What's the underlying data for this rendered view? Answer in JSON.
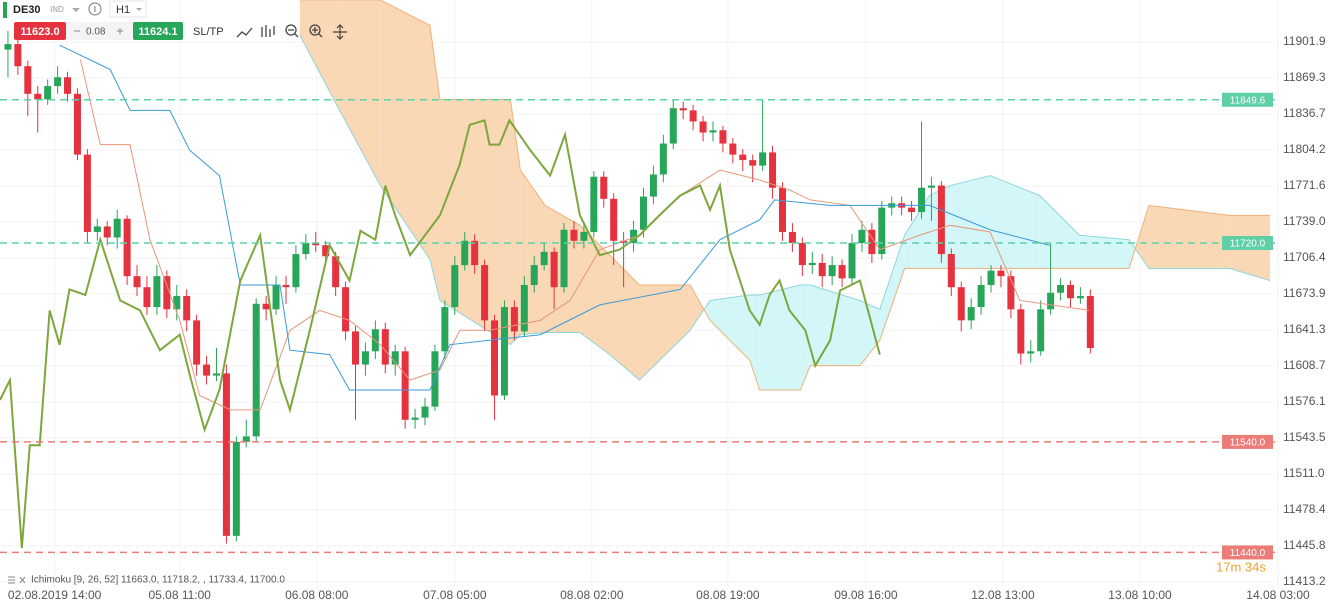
{
  "toolbar": {
    "symbol": "DE30",
    "badge": "IND",
    "timeframe": "H1",
    "sell": "11623.0",
    "spread": "0.08",
    "buy": "11624.1",
    "sltp": "SL/TP"
  },
  "chart_data": {
    "type": "candlestick",
    "ylim": [
      11388.8,
      11939.9
    ],
    "yticks": [
      11413.2,
      11445.8,
      11478.4,
      {
        "value": 11511,
        "label": "11511.0"
      },
      11543.5,
      11576.1,
      11608.7,
      11641.3,
      11673.9,
      11706.4,
      {
        "value": 11739,
        "label": "11739.0"
      },
      11771.6,
      11804.2,
      11836.7,
      11869.3,
      11901.9
    ],
    "xlim": [
      -0.8,
      128.1
    ],
    "xticks": [
      {
        "value": 4.7,
        "label": "02.08.2019 14:00"
      },
      {
        "value": 17.3,
        "label": "05.08 11:00"
      },
      {
        "value": 31.1,
        "label": "06.08 08:00"
      },
      {
        "value": 45.0,
        "label": "07.08 05:00"
      },
      {
        "value": 58.8,
        "label": "08.08 02:00"
      },
      {
        "value": 72.5,
        "label": "08.08 19:00"
      },
      {
        "value": 86.4,
        "label": "09.08 16:00"
      },
      {
        "value": 100.2,
        "label": "12.08 13:00"
      },
      {
        "value": 114.0,
        "label": "13.08 10:00"
      },
      {
        "value": 127.9,
        "label": "14.08 03:00"
      }
    ],
    "grid": true,
    "up_color": "#27a65a",
    "down_color": "#e4323f",
    "open": [
      11895,
      11900,
      11880,
      11855,
      11850,
      11862,
      11870,
      11855,
      11800,
      11730,
      11735,
      11725,
      11742,
      11690,
      11680,
      11662,
      11690,
      11660,
      11672,
      11650,
      11610,
      11600,
      11602,
      11455,
      11540,
      11545,
      11665,
      11660,
      11682,
      11680,
      11710,
      11720,
      11718,
      11708,
      11680,
      11640,
      11610,
      11622,
      11642,
      11610,
      11622,
      11560,
      11562,
      11572,
      11622,
      11662,
      11700,
      11722,
      11700,
      11650,
      11582,
      11662,
      11640,
      11682,
      11700,
      11712,
      11680,
      11732,
      11722,
      11730,
      11780,
      11760,
      11722,
      11720,
      11732,
      11762,
      11782,
      11810,
      11842,
      11840,
      11830,
      11820,
      11822,
      11810,
      11800,
      11795,
      11790,
      11802,
      11770,
      11730,
      11720,
      11700,
      11702,
      11690,
      11700,
      11688,
      11720,
      11732,
      11710,
      11752,
      11756,
      11752,
      11748,
      11770,
      11772,
      11710,
      11680,
      11650,
      11662,
      11682,
      11695,
      11690,
      11660,
      11620,
      11622,
      11660,
      11675,
      11682,
      11670,
      11672
    ],
    "high": [
      11912,
      11905,
      11885,
      11862,
      11868,
      11880,
      11875,
      11860,
      11805,
      11742,
      11740,
      11750,
      11745,
      11700,
      11690,
      11700,
      11695,
      11682,
      11678,
      11655,
      11618,
      11625,
      11610,
      11545,
      11560,
      11670,
      11672,
      11690,
      11690,
      11718,
      11728,
      11730,
      11722,
      11712,
      11685,
      11645,
      11630,
      11650,
      11648,
      11628,
      11626,
      11570,
      11580,
      11628,
      11668,
      11708,
      11730,
      11728,
      11705,
      11655,
      11668,
      11668,
      11690,
      11708,
      11720,
      11716,
      11738,
      11740,
      11738,
      11785,
      11785,
      11765,
      11730,
      11740,
      11770,
      11790,
      11818,
      11850,
      11848,
      11845,
      11835,
      11830,
      11826,
      11815,
      11805,
      11800,
      11850,
      11808,
      11775,
      11738,
      11725,
      11712,
      11710,
      11708,
      11705,
      11728,
      11740,
      11738,
      11758,
      11762,
      11762,
      11758,
      11830,
      11780,
      11776,
      11715,
      11685,
      11670,
      11690,
      11700,
      11700,
      11695,
      11665,
      11632,
      11668,
      11720,
      11688,
      11686,
      11680,
      11678
    ],
    "low": [
      11870,
      11872,
      11835,
      11820,
      11845,
      11855,
      11848,
      11795,
      11720,
      11722,
      11718,
      11715,
      11682,
      11672,
      11655,
      11655,
      11652,
      11650,
      11640,
      11600,
      11592,
      11595,
      11448,
      11450,
      11535,
      11540,
      11650,
      11655,
      11665,
      11675,
      11705,
      11712,
      11700,
      11672,
      11632,
      11560,
      11600,
      11615,
      11602,
      11600,
      11552,
      11552,
      11555,
      11568,
      11615,
      11655,
      11695,
      11692,
      11640,
      11560,
      11578,
      11632,
      11635,
      11675,
      11695,
      11660,
      11675,
      11715,
      11715,
      11725,
      11752,
      11700,
      11680,
      11712,
      11725,
      11755,
      11775,
      11805,
      11832,
      11822,
      11812,
      11812,
      11802,
      11792,
      11785,
      11775,
      11785,
      11760,
      11722,
      11712,
      11690,
      11692,
      11680,
      11682,
      11680,
      11682,
      11712,
      11702,
      11705,
      11745,
      11745,
      11740,
      11742,
      11740,
      11702,
      11672,
      11640,
      11642,
      11655,
      11675,
      11680,
      11652,
      11610,
      11612,
      11618,
      11655,
      11668,
      11662,
      11665,
      11620
    ],
    "close": [
      11900,
      11880,
      11855,
      11850,
      11862,
      11870,
      11855,
      11800,
      11730,
      11735,
      11725,
      11742,
      11690,
      11680,
      11662,
      11690,
      11660,
      11672,
      11650,
      11610,
      11600,
      11602,
      11455,
      11540,
      11545,
      11665,
      11660,
      11682,
      11680,
      11710,
      11720,
      11718,
      11708,
      11680,
      11640,
      11610,
      11622,
      11642,
      11610,
      11622,
      11560,
      11562,
      11572,
      11622,
      11662,
      11700,
      11722,
      11700,
      11650,
      11582,
      11662,
      11640,
      11682,
      11700,
      11712,
      11680,
      11732,
      11722,
      11730,
      11780,
      11760,
      11722,
      11720,
      11732,
      11762,
      11782,
      11810,
      11842,
      11840,
      11830,
      11820,
      11822,
      11810,
      11800,
      11795,
      11790,
      11802,
      11770,
      11730,
      11720,
      11700,
      11702,
      11690,
      11700,
      11688,
      11720,
      11732,
      11710,
      11752,
      11756,
      11752,
      11748,
      11770,
      11772,
      11710,
      11680,
      11650,
      11662,
      11682,
      11695,
      11690,
      11660,
      11620,
      11622,
      11660,
      11675,
      11682,
      11670,
      11672,
      11625
    ],
    "cloud": {
      "x": [
        29.4,
        33.4,
        37.5,
        42.5,
        43.5,
        50.6,
        51.6,
        54.1,
        57.6,
        60.6,
        63.6,
        68.7,
        70.7,
        74.7,
        75.7,
        79.8,
        80.8,
        85.8,
        87.8,
        90.3,
        92.8,
        94.9,
        98.9,
        103.9,
        107.9,
        112.9,
        114.9,
        123.0,
        127.1
      ],
      "span_a": [
        11908,
        11840,
        11772,
        11705,
        11668,
        11628,
        11637,
        11639,
        11639,
        11619,
        11596,
        11641,
        11668,
        11673,
        11673,
        11682,
        11682,
        11668,
        11660,
        11727,
        11763,
        11772,
        11781,
        11763,
        11727,
        11723,
        11697,
        11697,
        11686
      ],
      "span_b": [
        11940,
        11940,
        11940,
        11917,
        11850,
        11850,
        11786,
        11754,
        11736,
        11709,
        11682,
        11682,
        11650,
        11614,
        11587,
        11587,
        11609,
        11609,
        11632,
        11697,
        11697,
        11697,
        11697,
        11697,
        11697,
        11697,
        11754,
        11745,
        11745
      ],
      "span_a_color": "#8fd6d8",
      "span_b_color": "#eeb27a",
      "bull_color": "#d3f6f8",
      "bear_color": "#fad7b5"
    },
    "lines": [
      {
        "color": "#e8967a",
        "width": 1,
        "x": [
          7.3,
          9.3,
          12.3,
          14.3,
          17.3,
          19.3,
          22.4,
          25.4,
          28.4,
          31.4,
          34.4,
          37.5,
          40.5,
          43.5,
          45.5,
          48.5,
          53.6,
          56.6,
          59.6,
          63.6,
          67.7,
          71.7,
          75.7,
          78.7,
          80.8,
          84.8,
          87.8,
          91.8,
          94.9,
          98.9,
          101.9,
          108.9
        ],
        "values": [
          11886,
          11809,
          11809,
          11723,
          11650,
          11582,
          11569,
          11569,
          11641,
          11659,
          11650,
          11628,
          11596,
          11605,
          11641,
          11641,
          11650,
          11668,
          11714,
          11727,
          11763,
          11786,
          11777,
          11768,
          11759,
          11754,
          11714,
          11727,
          11736,
          11730,
          11668,
          11659
        ]
      },
      {
        "color": "#3a9ad9",
        "width": 1,
        "x": [
          5.2,
          10.3,
          12.3,
          16.3,
          18.3,
          21.3,
          23.4,
          27.4,
          28.4,
          32.4,
          34.4,
          42.5,
          44.5,
          53.6,
          59.6,
          67.7,
          71.7,
          75.7,
          77.2,
          82.8,
          92.8,
          98.9,
          104.9
        ],
        "values": [
          11899,
          11877,
          11840,
          11840,
          11804,
          11781,
          11682,
          11682,
          11623,
          11619,
          11587,
          11587,
          11628,
          11637,
          11664,
          11678,
          11723,
          11741,
          11759,
          11754,
          11754,
          11732,
          11718
        ]
      },
      {
        "color": "#7ea63c",
        "width": 2,
        "x": [
          -0.8,
          0.2,
          1.4,
          2.2,
          3.2,
          4.2,
          5.2,
          6.2,
          7.8,
          9.3,
          11.3,
          13.3,
          15.3,
          17.3,
          18.3,
          19.8,
          21.3,
          23.4,
          25.4,
          27.4,
          28.4,
          30.4,
          32.4,
          34.4,
          35.5,
          37.0,
          38.0,
          39.0,
          40.5,
          43.5,
          45.5,
          46.5,
          48.0,
          48.5,
          49.5,
          50.5,
          52.6,
          54.6,
          56.1,
          57.6,
          59.6,
          61.6,
          63.6,
          65.6,
          67.7,
          69.7,
          70.7,
          71.7,
          72.7,
          74.7,
          75.7,
          76.7,
          77.7,
          78.7,
          80.3,
          81.3,
          82.8,
          83.8,
          85.8,
          87.8
        ],
        "values": [
          11578,
          11596,
          11444,
          11537,
          11537,
          11659,
          11628,
          11678,
          11673,
          11723,
          11668,
          11659,
          11623,
          11637,
          11601,
          11551,
          11587,
          11686,
          11727,
          11596,
          11569,
          11641,
          11718,
          11686,
          11731,
          11723,
          11772,
          11745,
          11709,
          11745,
          11791,
          11827,
          11831,
          11809,
          11809,
          11831,
          11804,
          11781,
          11818,
          11745,
          11709,
          11714,
          11727,
          11745,
          11763,
          11772,
          11750,
          11772,
          11714,
          11659,
          11646,
          11673,
          11686,
          11659,
          11641,
          11609,
          11632,
          11677,
          11686,
          11619
        ]
      }
    ],
    "levels": [
      {
        "price": 11849.6,
        "color": "#5fd0a6"
      },
      {
        "price": {
          "value": 11720,
          "label": "11720.0"
        },
        "color": "#5fd0a6"
      },
      {
        "price": {
          "value": 11540,
          "label": "11540.0"
        },
        "color": "#ec7c78"
      },
      {
        "price": {
          "value": 11440,
          "label": "11440.0"
        },
        "color": "#ec7c78"
      }
    ],
    "indicator": "Ichimoku [9, 26, 52] 11663.0, 11718.2, , 11733.4, 11700.0",
    "timer": "17m 34s"
  }
}
